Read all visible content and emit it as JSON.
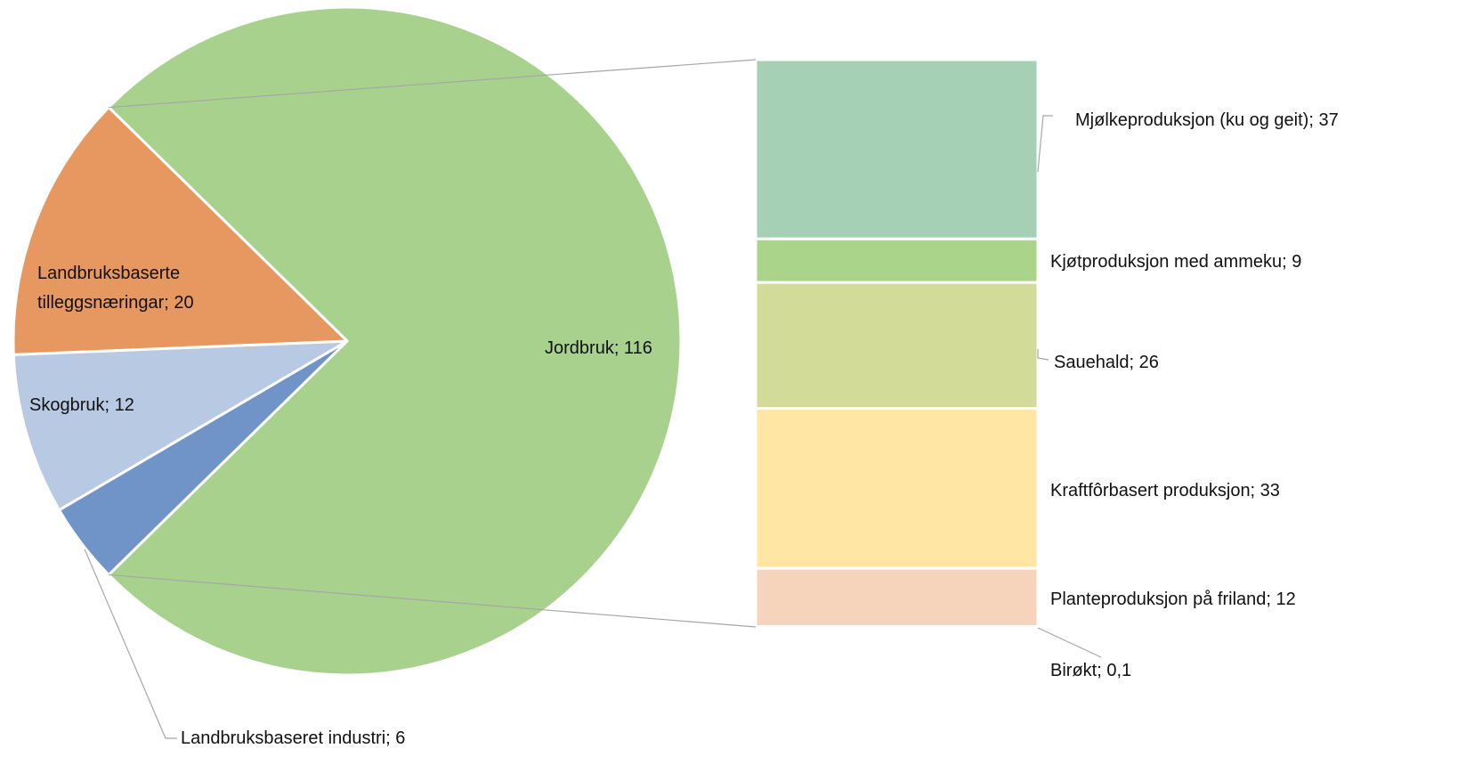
{
  "chart_data": {
    "type": "bar-of-pie",
    "pie": {
      "slices": [
        {
          "label": "Jordbruk",
          "value": 116,
          "display": "116",
          "color": "#a9d18e"
        },
        {
          "label": "Landbruksbaseret industri",
          "value": 6,
          "display": "6",
          "color": "#7094c8"
        },
        {
          "label": "Skogbruk",
          "value": 12,
          "display": "12",
          "color": "#b8c9e3"
        },
        {
          "label": "Landbruksbaserte tilleggsnæringar",
          "value": 20,
          "display": "20",
          "color": "#e69860"
        }
      ]
    },
    "breakdown_of": "Jordbruk",
    "bar": {
      "segments": [
        {
          "label": "Mjølkeproduksjon (ku og geit)",
          "value": 37,
          "display": "37",
          "color": "#a5d0b6"
        },
        {
          "label": "Kjøtproduksjon med ammeku",
          "value": 9,
          "display": "9",
          "color": "#a9d48a"
        },
        {
          "label": "Sauehald",
          "value": 26,
          "display": "26",
          "color": "#d2dc98"
        },
        {
          "label": "Kraftfôrbasert produksjon",
          "value": 33,
          "display": "33",
          "color": "#ffe6a5"
        },
        {
          "label": "Planteproduksjon på friland",
          "value": 12,
          "display": "12",
          "color": "#f5d4bb"
        },
        {
          "label": "Birøkt",
          "value": 0.1,
          "display": "0,1",
          "color": "#f8b400"
        }
      ]
    },
    "separator": ";  "
  }
}
